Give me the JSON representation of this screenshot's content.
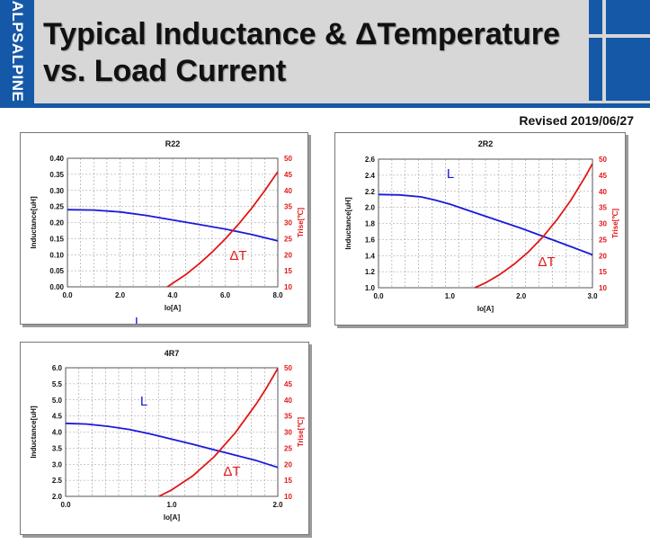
{
  "header": {
    "brand": "ALPSALPINE",
    "title_line1": "Typical Inductance & ΔTemperature",
    "title_line2": "vs. Load Current",
    "revised": "Revised 2019/06/27",
    "accent_color": "#1558a8"
  },
  "chart_data": [
    {
      "type": "line",
      "title": "R22",
      "xlabel": "Io[A]",
      "ylabel": "Inductance[uH]",
      "y2label": "Trise[℃]",
      "xlim": [
        0,
        8
      ],
      "xticks": [
        0,
        2,
        4,
        6,
        8
      ],
      "xtick_labels": [
        "0.0",
        "2.0",
        "4.0",
        "6.0",
        "8.0"
      ],
      "ylim": [
        0,
        0.4
      ],
      "yticks": [
        0,
        0.05,
        0.1,
        0.15,
        0.2,
        0.25,
        0.3,
        0.35,
        0.4
      ],
      "ytick_labels": [
        "0.00",
        "0.05",
        "0.10",
        "0.15",
        "0.20",
        "0.25",
        "0.30",
        "0.35",
        "0.40"
      ],
      "y2lim": [
        10,
        50
      ],
      "y2ticks": [
        10,
        15,
        20,
        25,
        30,
        35,
        40,
        45,
        50
      ],
      "grid": true,
      "series": [
        {
          "name": "L",
          "axis": "left",
          "color": "#1a1adb",
          "x": [
            0,
            1,
            2,
            3,
            4,
            5,
            6,
            7,
            8
          ],
          "y": [
            0.24,
            0.239,
            0.233,
            0.222,
            0.208,
            0.194,
            0.18,
            0.163,
            0.143
          ]
        },
        {
          "name": "ΔT",
          "axis": "right",
          "color": "#e11717",
          "x": [
            3.8,
            4.5,
            5.0,
            5.5,
            6.0,
            6.5,
            7.0,
            7.5,
            8.0
          ],
          "y": [
            10,
            13.8,
            17.1,
            20.8,
            24.9,
            29.4,
            34.4,
            39.9,
            45.8
          ]
        }
      ]
    },
    {
      "type": "line",
      "title": "2R2",
      "xlabel": "Io[A]",
      "ylabel": "Inductance[uH]",
      "y2label": "Trise[℃]",
      "xlim": [
        0,
        3
      ],
      "xticks": [
        0,
        1,
        2,
        3
      ],
      "xtick_labels": [
        "0.0",
        "1.0",
        "2.0",
        "3.0"
      ],
      "ylim": [
        1.0,
        2.6
      ],
      "yticks": [
        1.0,
        1.2,
        1.4,
        1.6,
        1.8,
        2.0,
        2.2,
        2.4,
        2.6
      ],
      "ytick_labels": [
        "1.0",
        "1.2",
        "1.4",
        "1.6",
        "1.8",
        "2.0",
        "2.2",
        "2.4",
        "2.6"
      ],
      "y2lim": [
        10,
        50
      ],
      "y2ticks": [
        10,
        15,
        20,
        25,
        30,
        35,
        40,
        45,
        50
      ],
      "grid": true,
      "series": [
        {
          "name": "L",
          "axis": "left",
          "color": "#1a1adb",
          "x": [
            0,
            0.3,
            0.6,
            0.8,
            1.0,
            1.3,
            1.6,
            2.0,
            2.4,
            2.7,
            3.0
          ],
          "y": [
            2.16,
            2.155,
            2.13,
            2.09,
            2.04,
            1.95,
            1.86,
            1.74,
            1.61,
            1.51,
            1.41
          ]
        },
        {
          "name": "ΔT",
          "axis": "right",
          "color": "#e11717",
          "x": [
            1.35,
            1.5,
            1.7,
            1.9,
            2.1,
            2.3,
            2.5,
            2.7,
            2.9,
            3.0
          ],
          "y": [
            10,
            11.5,
            14.1,
            17.3,
            21.1,
            25.7,
            31.1,
            37.3,
            44.6,
            48.6
          ]
        }
      ]
    },
    {
      "type": "line",
      "title": "4R7",
      "xlabel": "Io[A]",
      "ylabel": "Inductance[uH]",
      "y2label": "Trise[℃]",
      "xlim": [
        0,
        2
      ],
      "xticks": [
        0,
        1,
        2
      ],
      "xtick_labels": [
        "0.0",
        "1.0",
        "2.0"
      ],
      "ylim": [
        2.0,
        6.0
      ],
      "yticks": [
        2.0,
        2.5,
        3.0,
        3.5,
        4.0,
        4.5,
        5.0,
        5.5,
        6.0
      ],
      "ytick_labels": [
        "2.0",
        "2.5",
        "3.0",
        "3.5",
        "4.0",
        "4.5",
        "5.0",
        "5.5",
        "6.0"
      ],
      "y2lim": [
        10,
        50
      ],
      "y2ticks": [
        10,
        15,
        20,
        25,
        30,
        35,
        40,
        45,
        50
      ],
      "grid": true,
      "series": [
        {
          "name": "L",
          "axis": "left",
          "color": "#1a1adb",
          "x": [
            0,
            0.2,
            0.4,
            0.6,
            0.8,
            1.0,
            1.2,
            1.4,
            1.6,
            1.8,
            2.0
          ],
          "y": [
            4.27,
            4.25,
            4.18,
            4.08,
            3.94,
            3.78,
            3.62,
            3.45,
            3.28,
            3.11,
            2.9
          ]
        },
        {
          "name": "ΔT",
          "axis": "right",
          "color": "#e11717",
          "x": [
            0.88,
            1.0,
            1.2,
            1.4,
            1.6,
            1.8,
            1.9,
            2.0
          ],
          "y": [
            10,
            12.0,
            16.4,
            22.3,
            29.8,
            38.9,
            44.1,
            49.8
          ]
        }
      ]
    }
  ]
}
